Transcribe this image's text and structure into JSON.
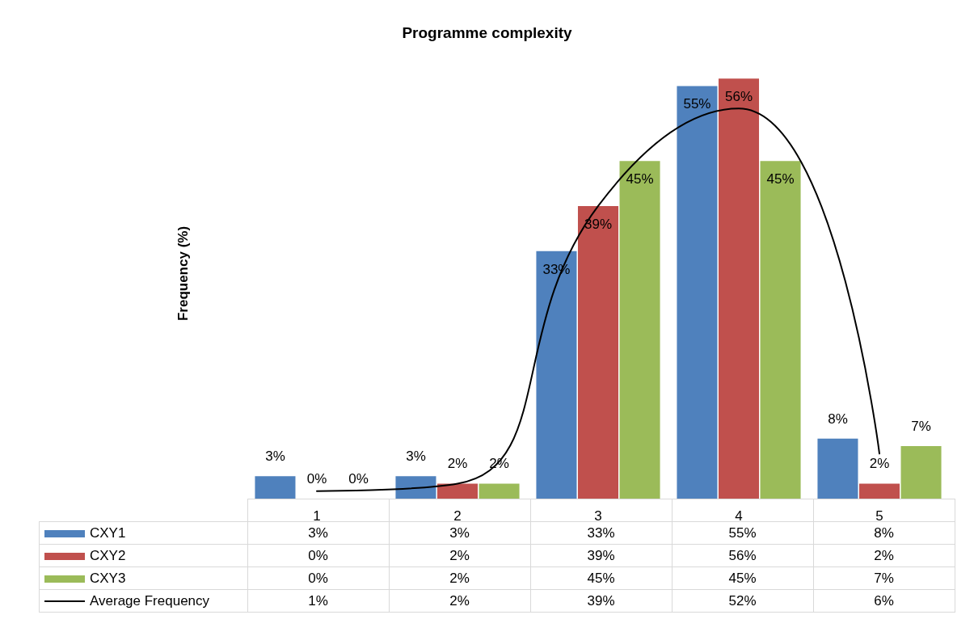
{
  "chart_data": {
    "type": "bar",
    "title": "Programme complexity",
    "ylabel": "Frequency (%)",
    "categories": [
      "1",
      "2",
      "3",
      "4",
      "5"
    ],
    "series": [
      {
        "name": "CXY1",
        "color": "#4f81bd",
        "values": [
          3,
          3,
          33,
          55,
          8
        ],
        "value_labels": [
          "3%",
          "3%",
          "33%",
          "55%",
          "8%"
        ]
      },
      {
        "name": "CXY2",
        "color": "#c0504d",
        "values": [
          0,
          2,
          39,
          56,
          2
        ],
        "value_labels": [
          "0%",
          "2%",
          "39%",
          "56%",
          "2%"
        ]
      },
      {
        "name": "CXY3",
        "color": "#9bbb59",
        "values": [
          0,
          2,
          45,
          45,
          7
        ],
        "value_labels": [
          "0%",
          "2%",
          "45%",
          "45%",
          "7%"
        ]
      },
      {
        "name": "Average Frequency",
        "type": "line",
        "color": "#000000",
        "values": [
          1,
          2,
          39,
          52,
          6
        ],
        "value_labels": [
          "1%",
          "2%",
          "39%",
          "52%",
          "6%"
        ],
        "marker": "none",
        "line_style": "solid"
      }
    ],
    "legend": "bottom",
    "tick_labels": "x",
    "grid": false
  }
}
